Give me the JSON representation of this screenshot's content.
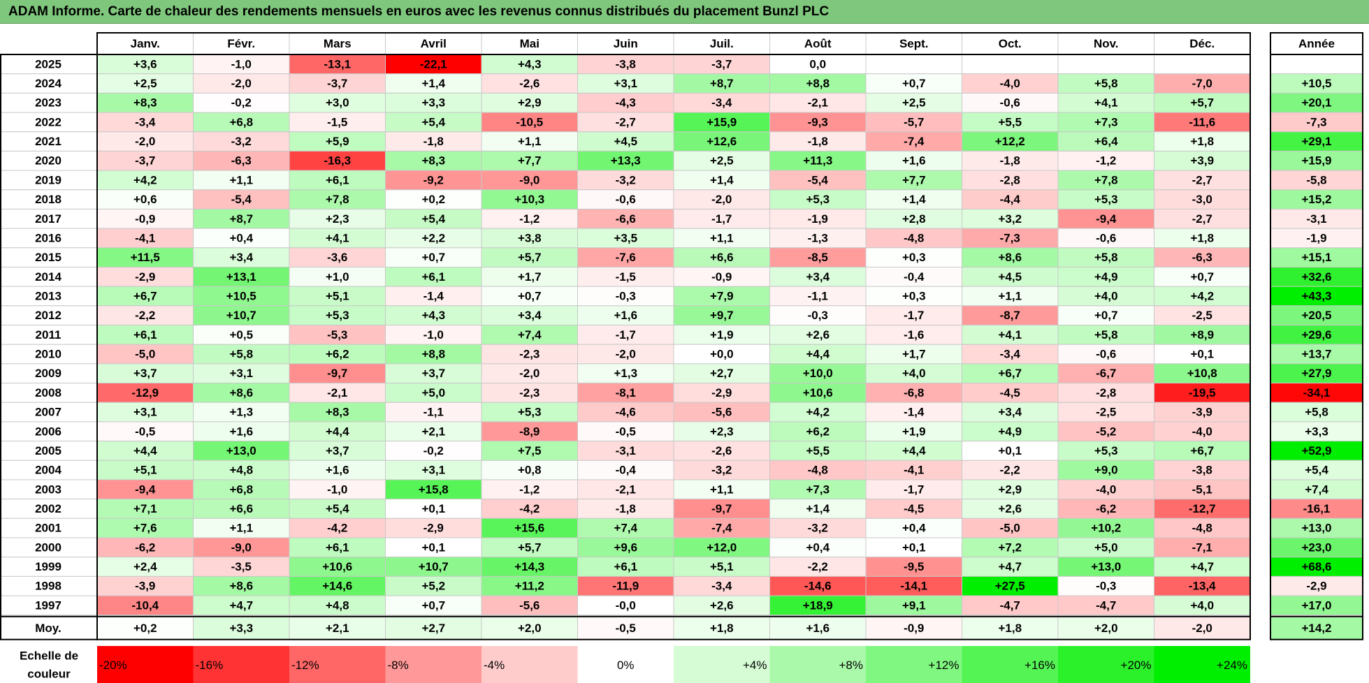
{
  "title": "ADAM Informe. Carte de chaleur des rendements mensuels en euros avec les revenus connus distribués du placement Bunzl PLC",
  "chart_data": {
    "type": "heatmap",
    "title": "ADAM Informe. Carte de chaleur des rendements mensuels en euros avec les revenus connus distribués du placement Bunzl PLC",
    "columns": [
      "Janv.",
      "Févr.",
      "Mars",
      "Avril",
      "Mai",
      "Juin",
      "Juil.",
      "Août",
      "Sept.",
      "Oct.",
      "Nov.",
      "Déc."
    ],
    "year_column_label": "Année",
    "rows": [
      {
        "label": "2025",
        "values": [
          "+3,6",
          "-1,0",
          "-13,1",
          "-22,1",
          "+4,3",
          "-3,8",
          "-3,7",
          "0,0",
          "",
          "",
          "",
          ""
        ],
        "year": ""
      },
      {
        "label": "2024",
        "values": [
          "+2,5",
          "-2,0",
          "-3,7",
          "+1,4",
          "-2,6",
          "+3,1",
          "+8,7",
          "+8,8",
          "+0,7",
          "-4,0",
          "+5,8",
          "-7,0"
        ],
        "year": "+10,5"
      },
      {
        "label": "2023",
        "values": [
          "+8,3",
          "-0,2",
          "+3,0",
          "+3,3",
          "+2,9",
          "-4,3",
          "-3,4",
          "-2,1",
          "+2,5",
          "-0,6",
          "+4,1",
          "+5,7"
        ],
        "year": "+20,1"
      },
      {
        "label": "2022",
        "values": [
          "-3,4",
          "+6,8",
          "-1,5",
          "+5,4",
          "-10,5",
          "-2,7",
          "+15,9",
          "-9,3",
          "-5,7",
          "+5,5",
          "+7,3",
          "-11,6"
        ],
        "year": "-7,3"
      },
      {
        "label": "2021",
        "values": [
          "-2,0",
          "-3,2",
          "+5,9",
          "-1,8",
          "+1,1",
          "+4,5",
          "+12,6",
          "-1,8",
          "-7,4",
          "+12,2",
          "+6,4",
          "+1,8"
        ],
        "year": "+29,1"
      },
      {
        "label": "2020",
        "values": [
          "-3,7",
          "-6,3",
          "-16,3",
          "+8,3",
          "+7,7",
          "+13,3",
          "+2,5",
          "+11,3",
          "+1,6",
          "-1,8",
          "-1,2",
          "+3,9"
        ],
        "year": "+15,9"
      },
      {
        "label": "2019",
        "values": [
          "+4,2",
          "+1,1",
          "+6,1",
          "-9,2",
          "-9,0",
          "-3,2",
          "+1,4",
          "-5,4",
          "+7,7",
          "-2,8",
          "+7,8",
          "-2,7"
        ],
        "year": "-5,8"
      },
      {
        "label": "2018",
        "values": [
          "+0,6",
          "-5,4",
          "+7,8",
          "+0,2",
          "+10,3",
          "-0,6",
          "-2,0",
          "+5,3",
          "+1,4",
          "-4,4",
          "+5,3",
          "-3,0"
        ],
        "year": "+15,2"
      },
      {
        "label": "2017",
        "values": [
          "-0,9",
          "+8,7",
          "+2,3",
          "+5,4",
          "-1,2",
          "-6,6",
          "-1,7",
          "-1,9",
          "+2,8",
          "+3,2",
          "-9,4",
          "-2,7"
        ],
        "year": "-3,1"
      },
      {
        "label": "2016",
        "values": [
          "-4,1",
          "+0,4",
          "+4,1",
          "+2,2",
          "+3,8",
          "+3,5",
          "+1,1",
          "-1,3",
          "-4,8",
          "-7,3",
          "-0,6",
          "+1,8"
        ],
        "year": "-1,9"
      },
      {
        "label": "2015",
        "values": [
          "+11,5",
          "+3,4",
          "-3,6",
          "+0,7",
          "+5,7",
          "-7,6",
          "+6,6",
          "-8,5",
          "+0,3",
          "+8,6",
          "+5,8",
          "-6,3"
        ],
        "year": "+15,1"
      },
      {
        "label": "2014",
        "values": [
          "-2,9",
          "+13,1",
          "+1,0",
          "+6,1",
          "+1,7",
          "-1,5",
          "-0,9",
          "+3,4",
          "-0,4",
          "+4,5",
          "+4,9",
          "+0,7"
        ],
        "year": "+32,6"
      },
      {
        "label": "2013",
        "values": [
          "+6,7",
          "+10,5",
          "+5,1",
          "-1,4",
          "+0,7",
          "-0,3",
          "+7,9",
          "-1,1",
          "+0,3",
          "+1,1",
          "+4,0",
          "+4,2"
        ],
        "year": "+43,3"
      },
      {
        "label": "2012",
        "values": [
          "-2,2",
          "+10,7",
          "+5,3",
          "+4,3",
          "+3,4",
          "+1,6",
          "+9,7",
          "-0,3",
          "-1,7",
          "-8,7",
          "+0,7",
          "-2,5"
        ],
        "year": "+20,5"
      },
      {
        "label": "2011",
        "values": [
          "+6,1",
          "+0,5",
          "-5,3",
          "-1,0",
          "+7,4",
          "-1,7",
          "+1,9",
          "+2,6",
          "-1,6",
          "+4,1",
          "+5,8",
          "+8,9"
        ],
        "year": "+29,6"
      },
      {
        "label": "2010",
        "values": [
          "-5,0",
          "+5,8",
          "+6,2",
          "+8,8",
          "-2,3",
          "-2,0",
          "+0,0",
          "+4,4",
          "+1,7",
          "-3,4",
          "-0,6",
          "+0,1"
        ],
        "year": "+13,7"
      },
      {
        "label": "2009",
        "values": [
          "+3,7",
          "+3,1",
          "-9,7",
          "+3,7",
          "-2,0",
          "+1,3",
          "+2,7",
          "+10,0",
          "+4,0",
          "+6,7",
          "-6,7",
          "+10,8"
        ],
        "year": "+27,9"
      },
      {
        "label": "2008",
        "values": [
          "-12,9",
          "+8,6",
          "-2,1",
          "+5,0",
          "-2,3",
          "-8,1",
          "-2,9",
          "+10,6",
          "-6,8",
          "-4,5",
          "-2,8",
          "-19,5"
        ],
        "year": "-34,1"
      },
      {
        "label": "2007",
        "values": [
          "+3,1",
          "+1,3",
          "+8,3",
          "-1,1",
          "+5,3",
          "-4,6",
          "-5,6",
          "+4,2",
          "-1,4",
          "+3,4",
          "-2,5",
          "-3,9"
        ],
        "year": "+5,8"
      },
      {
        "label": "2006",
        "values": [
          "-0,5",
          "+1,6",
          "+4,4",
          "+2,1",
          "-8,9",
          "-0,5",
          "+2,3",
          "+6,2",
          "+1,9",
          "+4,9",
          "-5,2",
          "-4,0"
        ],
        "year": "+3,3"
      },
      {
        "label": "2005",
        "values": [
          "+4,4",
          "+13,0",
          "+3,7",
          "-0,2",
          "+7,5",
          "-3,1",
          "-2,6",
          "+5,5",
          "+4,4",
          "+0,1",
          "+5,3",
          "+6,7"
        ],
        "year": "+52,9"
      },
      {
        "label": "2004",
        "values": [
          "+5,1",
          "+4,8",
          "+1,6",
          "+3,1",
          "+0,8",
          "-0,4",
          "-3,2",
          "-4,8",
          "-4,1",
          "-2,2",
          "+9,0",
          "-3,8"
        ],
        "year": "+5,4"
      },
      {
        "label": "2003",
        "values": [
          "-9,4",
          "+6,8",
          "-1,0",
          "+15,8",
          "-1,2",
          "-2,1",
          "+1,1",
          "+7,3",
          "-1,7",
          "+2,9",
          "-4,0",
          "-5,1"
        ],
        "year": "+7,4"
      },
      {
        "label": "2002",
        "values": [
          "+7,1",
          "+6,6",
          "+5,4",
          "+0,1",
          "-4,2",
          "-1,8",
          "-9,7",
          "+1,4",
          "-4,5",
          "+2,6",
          "-6,2",
          "-12,7"
        ],
        "year": "-16,1"
      },
      {
        "label": "2001",
        "values": [
          "+7,6",
          "+1,1",
          "-4,2",
          "-2,9",
          "+15,6",
          "+7,4",
          "-7,4",
          "-3,2",
          "+0,4",
          "-5,0",
          "+10,2",
          "-4,8"
        ],
        "year": "+13,0"
      },
      {
        "label": "2000",
        "values": [
          "-6,2",
          "-9,0",
          "+6,1",
          "+0,1",
          "+5,7",
          "+9,6",
          "+12,0",
          "+0,4",
          "+0,1",
          "+7,2",
          "+5,0",
          "-7,1"
        ],
        "year": "+23,0"
      },
      {
        "label": "1999",
        "values": [
          "+2,4",
          "-3,5",
          "+10,6",
          "+10,7",
          "+14,3",
          "+6,1",
          "+5,1",
          "-2,2",
          "-9,5",
          "+4,7",
          "+13,0",
          "+4,7"
        ],
        "year": "+68,6"
      },
      {
        "label": "1998",
        "values": [
          "-3,9",
          "+8,6",
          "+14,6",
          "+5,2",
          "+11,2",
          "-11,9",
          "-3,4",
          "-14,6",
          "-14,1",
          "+27,5",
          "-0,3",
          "-13,4"
        ],
        "year": "-2,9"
      },
      {
        "label": "1997",
        "values": [
          "-10,4",
          "+4,7",
          "+4,8",
          "+0,7",
          "-5,6",
          "-0,0",
          "+2,6",
          "+18,9",
          "+9,1",
          "-4,7",
          "-4,7",
          "+4,0"
        ],
        "year": "+17,0"
      }
    ],
    "average": {
      "label": "Moy.",
      "values": [
        "+0,2",
        "+3,3",
        "+2,1",
        "+2,7",
        "+2,0",
        "-0,5",
        "+1,8",
        "+1,6",
        "-0,9",
        "+1,8",
        "+2,0",
        "-2,0"
      ],
      "year": "+14,2"
    },
    "scale": {
      "label_lines": [
        "Echelle de",
        "couleur"
      ],
      "values": [
        -20,
        -16,
        -12,
        -8,
        -4,
        0,
        4,
        8,
        12,
        16,
        20,
        24
      ],
      "labels": [
        "-20%",
        "-16%",
        "-12%",
        "-8%",
        "-4%",
        "0%",
        "+4%",
        "+8%",
        "+12%",
        "+16%",
        "+20%",
        "+24%"
      ]
    },
    "colors": {
      "negative_max": "#ff0000",
      "neutral": "#ffffff",
      "positive_max": "#00ee00",
      "title_bar": "#7fc77c",
      "grid": "#c8c8c8",
      "border": "#000000"
    }
  }
}
